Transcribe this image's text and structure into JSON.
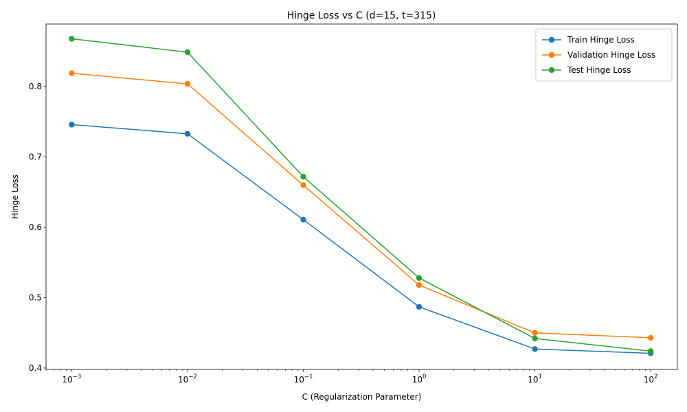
{
  "chart_data": {
    "type": "line",
    "title": "Hinge Loss vs C (d=15, t=315)",
    "xlabel": "C (Regularization Parameter)",
    "ylabel": "Hinge Loss",
    "xscale": "log",
    "x": [
      0.001,
      0.01,
      0.1,
      1,
      10,
      100
    ],
    "xticks": [
      {
        "value": 0.001,
        "base": "10",
        "exp": "−3"
      },
      {
        "value": 0.01,
        "base": "10",
        "exp": "−2"
      },
      {
        "value": 0.1,
        "base": "10",
        "exp": "−1"
      },
      {
        "value": 1,
        "base": "10",
        "exp": "0"
      },
      {
        "value": 10,
        "base": "10",
        "exp": "1"
      },
      {
        "value": 100,
        "base": "10",
        "exp": "2"
      }
    ],
    "xlim": [
      0.0006,
      170
    ],
    "ylim": [
      0.398,
      0.889
    ],
    "yticks": [
      0.4,
      0.5,
      0.6,
      0.7,
      0.8
    ],
    "ytick_labels": [
      "0.4",
      "0.5",
      "0.6",
      "0.7",
      "0.8"
    ],
    "grid": false,
    "legend_position": "top-right",
    "series": [
      {
        "name": "Train Hinge Loss",
        "color": "#1f77b4",
        "values": [
          0.746,
          0.733,
          0.611,
          0.487,
          0.427,
          0.421
        ]
      },
      {
        "name": "Validation Hinge Loss",
        "color": "#ff7f0e",
        "values": [
          0.819,
          0.804,
          0.66,
          0.518,
          0.45,
          0.443
        ]
      },
      {
        "name": "Test Hinge Loss",
        "color": "#2ca02c",
        "values": [
          0.868,
          0.849,
          0.672,
          0.528,
          0.442,
          0.424
        ]
      }
    ]
  }
}
